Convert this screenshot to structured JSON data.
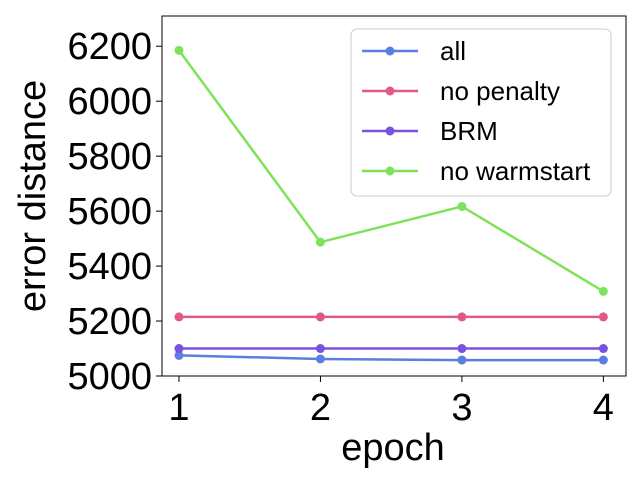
{
  "chart_data": {
    "type": "line",
    "title": "",
    "xlabel": "epoch",
    "ylabel": "error distance",
    "x": [
      1,
      2,
      3,
      4
    ],
    "xticks": [
      1,
      2,
      3,
      4
    ],
    "yticks": [
      5000,
      5200,
      5400,
      5600,
      5800,
      6000,
      6200
    ],
    "xlim": [
      0.88,
      4.16
    ],
    "ylim": [
      5000,
      6310
    ],
    "grid": false,
    "legend_position": "top-right",
    "series": [
      {
        "name": "all",
        "color": "#5b7fe0",
        "values": [
          5075,
          5062,
          5058,
          5058
        ]
      },
      {
        "name": "no penalty",
        "color": "#e05a82",
        "values": [
          5215,
          5215,
          5215,
          5215
        ]
      },
      {
        "name": "BRM",
        "color": "#7b52e0",
        "values": [
          5100,
          5100,
          5100,
          5100
        ]
      },
      {
        "name": "no warmstart",
        "color": "#7ee35b",
        "values": [
          6185,
          5487,
          5617,
          5308
        ]
      }
    ]
  }
}
